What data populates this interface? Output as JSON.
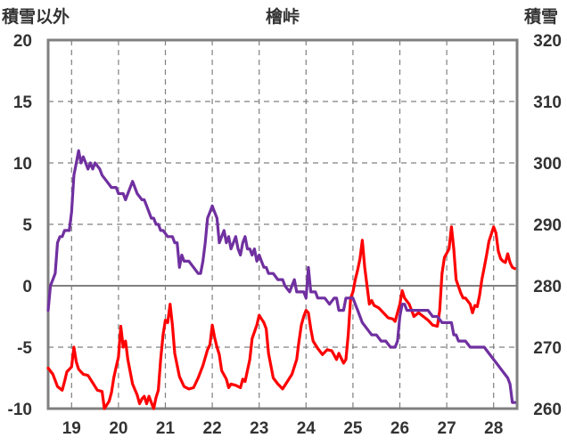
{
  "chart_data": {
    "type": "line",
    "title": "檜峠",
    "left_axis_label": "積雪以外",
    "right_axis_label": "積雪",
    "left_axis": {
      "ylim": [
        -10,
        20
      ],
      "ticks": [
        20,
        15,
        10,
        5,
        0,
        -5,
        -10
      ]
    },
    "right_axis": {
      "ylim": [
        260,
        320
      ],
      "ticks": [
        320,
        310,
        300,
        290,
        280,
        270,
        260
      ]
    },
    "x_ticks": [
      19,
      20,
      21,
      22,
      23,
      24,
      25,
      26,
      27,
      28
    ],
    "xlim": [
      18.5,
      28.5
    ],
    "grid": true,
    "colors": {
      "temperature": "#ff0000",
      "snow_depth": "#7030a0",
      "grid": "#808080",
      "frame": "#808080"
    },
    "series": [
      {
        "key": "temperature",
        "axis": "left",
        "points": [
          [
            18.5,
            -6.7
          ],
          [
            18.6,
            -7.2
          ],
          [
            18.7,
            -8.2
          ],
          [
            18.8,
            -8.5
          ],
          [
            18.85,
            -7.8
          ],
          [
            18.9,
            -7.0
          ],
          [
            19.0,
            -6.6
          ],
          [
            19.05,
            -5.0
          ],
          [
            19.1,
            -6.2
          ],
          [
            19.15,
            -6.8
          ],
          [
            19.25,
            -7.2
          ],
          [
            19.35,
            -7.3
          ],
          [
            19.45,
            -7.9
          ],
          [
            19.55,
            -8.5
          ],
          [
            19.65,
            -8.6
          ],
          [
            19.7,
            -10.0
          ],
          [
            19.8,
            -9.4
          ],
          [
            19.85,
            -8.7
          ],
          [
            19.9,
            -7.5
          ],
          [
            19.95,
            -6.6
          ],
          [
            20.0,
            -5.8
          ],
          [
            20.05,
            -3.3
          ],
          [
            20.1,
            -5.0
          ],
          [
            20.15,
            -4.5
          ],
          [
            20.2,
            -6.0
          ],
          [
            20.3,
            -8.0
          ],
          [
            20.4,
            -8.9
          ],
          [
            20.45,
            -9.6
          ],
          [
            20.5,
            -9.2
          ],
          [
            20.55,
            -9.0
          ],
          [
            20.6,
            -9.6
          ],
          [
            20.65,
            -9.0
          ],
          [
            20.7,
            -9.5
          ],
          [
            20.75,
            -10.0
          ],
          [
            20.8,
            -9.1
          ],
          [
            20.85,
            -8.5
          ],
          [
            20.9,
            -6.0
          ],
          [
            20.95,
            -4.0
          ],
          [
            21.0,
            -2.8
          ],
          [
            21.05,
            -3.0
          ],
          [
            21.1,
            -1.5
          ],
          [
            21.15,
            -3.2
          ],
          [
            21.2,
            -5.5
          ],
          [
            21.3,
            -7.4
          ],
          [
            21.4,
            -8.2
          ],
          [
            21.5,
            -8.4
          ],
          [
            21.6,
            -8.3
          ],
          [
            21.7,
            -7.5
          ],
          [
            21.8,
            -6.5
          ],
          [
            21.9,
            -5.2
          ],
          [
            21.95,
            -4.8
          ],
          [
            22.0,
            -3.2
          ],
          [
            22.05,
            -4.2
          ],
          [
            22.1,
            -5.0
          ],
          [
            22.15,
            -5.6
          ],
          [
            22.2,
            -6.9
          ],
          [
            22.3,
            -7.6
          ],
          [
            22.35,
            -8.3
          ],
          [
            22.4,
            -8.0
          ],
          [
            22.5,
            -8.1
          ],
          [
            22.6,
            -8.3
          ],
          [
            22.65,
            -7.6
          ],
          [
            22.7,
            -7.8
          ],
          [
            22.8,
            -6.0
          ],
          [
            22.85,
            -4.3
          ],
          [
            22.95,
            -3.2
          ],
          [
            23.0,
            -2.4
          ],
          [
            23.05,
            -2.7
          ],
          [
            23.1,
            -3.0
          ],
          [
            23.15,
            -3.5
          ],
          [
            23.2,
            -5.5
          ],
          [
            23.3,
            -7.5
          ],
          [
            23.4,
            -8.0
          ],
          [
            23.5,
            -8.4
          ],
          [
            23.6,
            -7.8
          ],
          [
            23.7,
            -7.2
          ],
          [
            23.8,
            -6.0
          ],
          [
            23.85,
            -4.5
          ],
          [
            23.9,
            -3.2
          ],
          [
            23.95,
            -2.5
          ],
          [
            24.0,
            -2.0
          ],
          [
            24.05,
            -2.2
          ],
          [
            24.1,
            -3.5
          ],
          [
            24.15,
            -4.5
          ],
          [
            24.25,
            -5.1
          ],
          [
            24.35,
            -5.6
          ],
          [
            24.45,
            -5.2
          ],
          [
            24.55,
            -5.3
          ],
          [
            24.65,
            -6.0
          ],
          [
            24.7,
            -5.5
          ],
          [
            24.8,
            -6.3
          ],
          [
            24.85,
            -6.0
          ],
          [
            24.9,
            -4.0
          ],
          [
            24.95,
            -1.0
          ],
          [
            25.0,
            -0.5
          ],
          [
            25.05,
            0.5
          ],
          [
            25.1,
            1.3
          ],
          [
            25.15,
            2.2
          ],
          [
            25.2,
            3.7
          ],
          [
            25.25,
            1.5
          ],
          [
            25.3,
            0.0
          ],
          [
            25.35,
            -1.5
          ],
          [
            25.4,
            -1.2
          ],
          [
            25.45,
            -1.6
          ],
          [
            25.55,
            -1.8
          ],
          [
            25.65,
            -2.2
          ],
          [
            25.75,
            -2.6
          ],
          [
            25.85,
            -2.7
          ],
          [
            25.9,
            -2.9
          ],
          [
            26.0,
            -1.5
          ],
          [
            26.05,
            -0.4
          ],
          [
            26.1,
            -1.0
          ],
          [
            26.2,
            -1.5
          ],
          [
            26.25,
            -2.0
          ],
          [
            26.3,
            -2.5
          ],
          [
            26.4,
            -2.2
          ],
          [
            26.5,
            -2.5
          ],
          [
            26.6,
            -2.8
          ],
          [
            26.7,
            -3.2
          ],
          [
            26.8,
            -3.3
          ],
          [
            26.85,
            -2.0
          ],
          [
            26.9,
            1.0
          ],
          [
            26.95,
            2.3
          ],
          [
            27.05,
            3.0
          ],
          [
            27.1,
            4.8
          ],
          [
            27.15,
            3.0
          ],
          [
            27.2,
            0.5
          ],
          [
            27.3,
            -0.6
          ],
          [
            27.35,
            -1.0
          ],
          [
            27.4,
            -1.0
          ],
          [
            27.5,
            -1.5
          ],
          [
            27.55,
            -2.2
          ],
          [
            27.6,
            -1.6
          ],
          [
            27.65,
            -1.7
          ],
          [
            27.7,
            -0.8
          ],
          [
            27.75,
            0.5
          ],
          [
            27.8,
            1.5
          ],
          [
            27.85,
            2.5
          ],
          [
            27.9,
            3.6
          ],
          [
            27.95,
            4.2
          ],
          [
            28.0,
            4.8
          ],
          [
            28.05,
            4.3
          ],
          [
            28.1,
            2.8
          ],
          [
            28.15,
            2.2
          ],
          [
            28.2,
            2.0
          ],
          [
            28.25,
            1.9
          ],
          [
            28.3,
            2.6
          ],
          [
            28.35,
            1.9
          ],
          [
            28.4,
            1.5
          ],
          [
            28.45,
            1.4
          ]
        ]
      },
      {
        "key": "snow_depth",
        "axis": "right",
        "points": [
          [
            18.5,
            276
          ],
          [
            18.55,
            280
          ],
          [
            18.6,
            281
          ],
          [
            18.65,
            282
          ],
          [
            18.7,
            287
          ],
          [
            18.75,
            288
          ],
          [
            18.8,
            288
          ],
          [
            18.85,
            289
          ],
          [
            18.95,
            289
          ],
          [
            19.0,
            292
          ],
          [
            19.05,
            298
          ],
          [
            19.1,
            300
          ],
          [
            19.15,
            302
          ],
          [
            19.2,
            300
          ],
          [
            19.25,
            301
          ],
          [
            19.3,
            300
          ],
          [
            19.35,
            299
          ],
          [
            19.4,
            300
          ],
          [
            19.45,
            299
          ],
          [
            19.5,
            300
          ],
          [
            19.6,
            299
          ],
          [
            19.65,
            298
          ],
          [
            19.75,
            297
          ],
          [
            19.85,
            296
          ],
          [
            19.95,
            296
          ],
          [
            20.0,
            295
          ],
          [
            20.1,
            295
          ],
          [
            20.15,
            294
          ],
          [
            20.2,
            295
          ],
          [
            20.3,
            297
          ],
          [
            20.4,
            295
          ],
          [
            20.5,
            294
          ],
          [
            20.55,
            294
          ],
          [
            20.6,
            293
          ],
          [
            20.65,
            292
          ],
          [
            20.7,
            291
          ],
          [
            20.75,
            291
          ],
          [
            20.8,
            290
          ],
          [
            20.85,
            290
          ],
          [
            20.9,
            289
          ],
          [
            20.95,
            289
          ],
          [
            21.05,
            288
          ],
          [
            21.15,
            288
          ],
          [
            21.2,
            287
          ],
          [
            21.25,
            287
          ],
          [
            21.3,
            283
          ],
          [
            21.35,
            285
          ],
          [
            21.4,
            284
          ],
          [
            21.5,
            284
          ],
          [
            21.6,
            283
          ],
          [
            21.7,
            282
          ],
          [
            21.75,
            282
          ],
          [
            21.8,
            284
          ],
          [
            21.85,
            287
          ],
          [
            21.9,
            291
          ],
          [
            21.95,
            292
          ],
          [
            22.0,
            293
          ],
          [
            22.05,
            292
          ],
          [
            22.1,
            291
          ],
          [
            22.15,
            287
          ],
          [
            22.2,
            288
          ],
          [
            22.25,
            289
          ],
          [
            22.3,
            287
          ],
          [
            22.35,
            288
          ],
          [
            22.4,
            286
          ],
          [
            22.45,
            287
          ],
          [
            22.5,
            288
          ],
          [
            22.55,
            286
          ],
          [
            22.6,
            285
          ],
          [
            22.65,
            287
          ],
          [
            22.7,
            288
          ],
          [
            22.75,
            286
          ],
          [
            22.8,
            286
          ],
          [
            22.85,
            285
          ],
          [
            22.9,
            286
          ],
          [
            22.95,
            284
          ],
          [
            23.0,
            285
          ],
          [
            23.05,
            284
          ],
          [
            23.1,
            283
          ],
          [
            23.15,
            283
          ],
          [
            23.2,
            282
          ],
          [
            23.3,
            282
          ],
          [
            23.4,
            281
          ],
          [
            23.5,
            281
          ],
          [
            23.55,
            280
          ],
          [
            23.65,
            279
          ],
          [
            23.7,
            280
          ],
          [
            23.75,
            281
          ],
          [
            23.8,
            279
          ],
          [
            23.85,
            279
          ],
          [
            23.95,
            279
          ],
          [
            24.0,
            278
          ],
          [
            24.05,
            283
          ],
          [
            24.1,
            279
          ],
          [
            24.15,
            279
          ],
          [
            24.2,
            279
          ],
          [
            24.25,
            278
          ],
          [
            24.3,
            278
          ],
          [
            24.4,
            278
          ],
          [
            24.5,
            277
          ],
          [
            24.6,
            278
          ],
          [
            24.65,
            278
          ],
          [
            24.7,
            276
          ],
          [
            24.75,
            276
          ],
          [
            24.8,
            276
          ],
          [
            24.85,
            278
          ],
          [
            24.9,
            278
          ],
          [
            24.95,
            278
          ],
          [
            25.0,
            278
          ],
          [
            25.05,
            277
          ],
          [
            25.1,
            276
          ],
          [
            25.15,
            275
          ],
          [
            25.2,
            274
          ],
          [
            25.3,
            273
          ],
          [
            25.4,
            272
          ],
          [
            25.5,
            272
          ],
          [
            25.6,
            271
          ],
          [
            25.7,
            271
          ],
          [
            25.8,
            270
          ],
          [
            25.9,
            270
          ],
          [
            25.95,
            271
          ],
          [
            26.0,
            275
          ],
          [
            26.05,
            277
          ],
          [
            26.1,
            277
          ],
          [
            26.15,
            276
          ],
          [
            26.2,
            276
          ],
          [
            26.3,
            276
          ],
          [
            26.4,
            276
          ],
          [
            26.5,
            276
          ],
          [
            26.6,
            276
          ],
          [
            26.7,
            275
          ],
          [
            26.8,
            275
          ],
          [
            26.9,
            274
          ],
          [
            27.0,
            274
          ],
          [
            27.1,
            274
          ],
          [
            27.15,
            272
          ],
          [
            27.2,
            272
          ],
          [
            27.25,
            271
          ],
          [
            27.3,
            271
          ],
          [
            27.4,
            271
          ],
          [
            27.5,
            270
          ],
          [
            27.6,
            270
          ],
          [
            27.7,
            270
          ],
          [
            27.8,
            270
          ],
          [
            27.9,
            269
          ],
          [
            28.0,
            268
          ],
          [
            28.1,
            267
          ],
          [
            28.2,
            266
          ],
          [
            28.3,
            265
          ],
          [
            28.35,
            264
          ],
          [
            28.4,
            261
          ],
          [
            28.45,
            261
          ]
        ]
      }
    ]
  }
}
